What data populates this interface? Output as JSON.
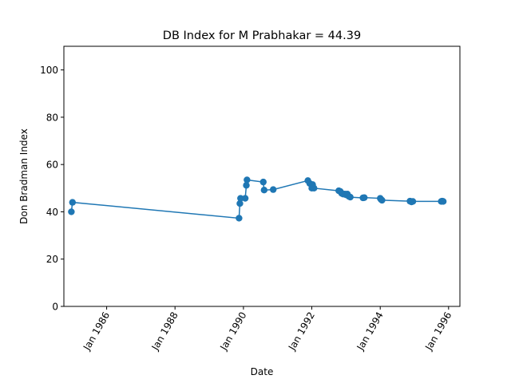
{
  "chart_data": {
    "type": "line",
    "title": "DB Index for M Prabhakar = 44.39",
    "xlabel": "Date",
    "ylabel": "Don Bradman Index",
    "xlim": [
      "1984-10-01",
      "1996-05-01"
    ],
    "ylim": [
      0,
      110
    ],
    "yticks": [
      0,
      20,
      40,
      60,
      80,
      100
    ],
    "xticks": [
      {
        "date": "1986-01-01",
        "label": "Jan 1986"
      },
      {
        "date": "1988-01-01",
        "label": "Jan 1988"
      },
      {
        "date": "1990-01-01",
        "label": "Jan 1990"
      },
      {
        "date": "1992-01-01",
        "label": "Jan 1992"
      },
      {
        "date": "1994-01-01",
        "label": "Jan 1994"
      },
      {
        "date": "1996-01-01",
        "label": "Jan 1996"
      }
    ],
    "grid": false,
    "color": "#1f77b4",
    "series": [
      {
        "points": [
          {
            "date": "1984-12-20",
            "value": 40.0
          },
          {
            "date": "1985-01-01",
            "value": 44.0
          },
          {
            "date": "1989-11-15",
            "value": 37.3
          },
          {
            "date": "1989-11-24",
            "value": 43.5
          },
          {
            "date": "1989-12-01",
            "value": 45.7
          },
          {
            "date": "1990-01-20",
            "value": 45.7
          },
          {
            "date": "1990-02-01",
            "value": 51.2
          },
          {
            "date": "1990-02-08",
            "value": 53.5
          },
          {
            "date": "1990-08-01",
            "value": 52.6
          },
          {
            "date": "1990-08-10",
            "value": 49.2
          },
          {
            "date": "1990-11-15",
            "value": 49.4
          },
          {
            "date": "1991-11-20",
            "value": 53.2
          },
          {
            "date": "1991-12-10",
            "value": 52.0
          },
          {
            "date": "1992-01-01",
            "value": 50.0
          },
          {
            "date": "1992-01-10",
            "value": 51.5
          },
          {
            "date": "1992-01-25",
            "value": 50.0
          },
          {
            "date": "1992-10-15",
            "value": 48.9
          },
          {
            "date": "1992-11-01",
            "value": 48.6
          },
          {
            "date": "1992-11-15",
            "value": 47.8
          },
          {
            "date": "1992-12-01",
            "value": 47.5
          },
          {
            "date": "1992-12-20",
            "value": 47.5
          },
          {
            "date": "1993-01-01",
            "value": 47.2
          },
          {
            "date": "1993-01-15",
            "value": 47.5
          },
          {
            "date": "1993-02-01",
            "value": 46.5
          },
          {
            "date": "1993-02-15",
            "value": 46.2
          },
          {
            "date": "1993-07-01",
            "value": 45.9
          },
          {
            "date": "1993-07-15",
            "value": 46.0
          },
          {
            "date": "1994-01-01",
            "value": 45.7
          },
          {
            "date": "1994-01-10",
            "value": 45.2
          },
          {
            "date": "1994-01-20",
            "value": 44.9
          },
          {
            "date": "1994-11-15",
            "value": 44.5
          },
          {
            "date": "1994-12-01",
            "value": 44.2
          },
          {
            "date": "1994-12-15",
            "value": 44.4
          },
          {
            "date": "1995-10-15",
            "value": 44.4
          },
          {
            "date": "1995-10-25",
            "value": 44.5
          },
          {
            "date": "1995-11-05",
            "value": 44.39
          }
        ]
      }
    ]
  }
}
